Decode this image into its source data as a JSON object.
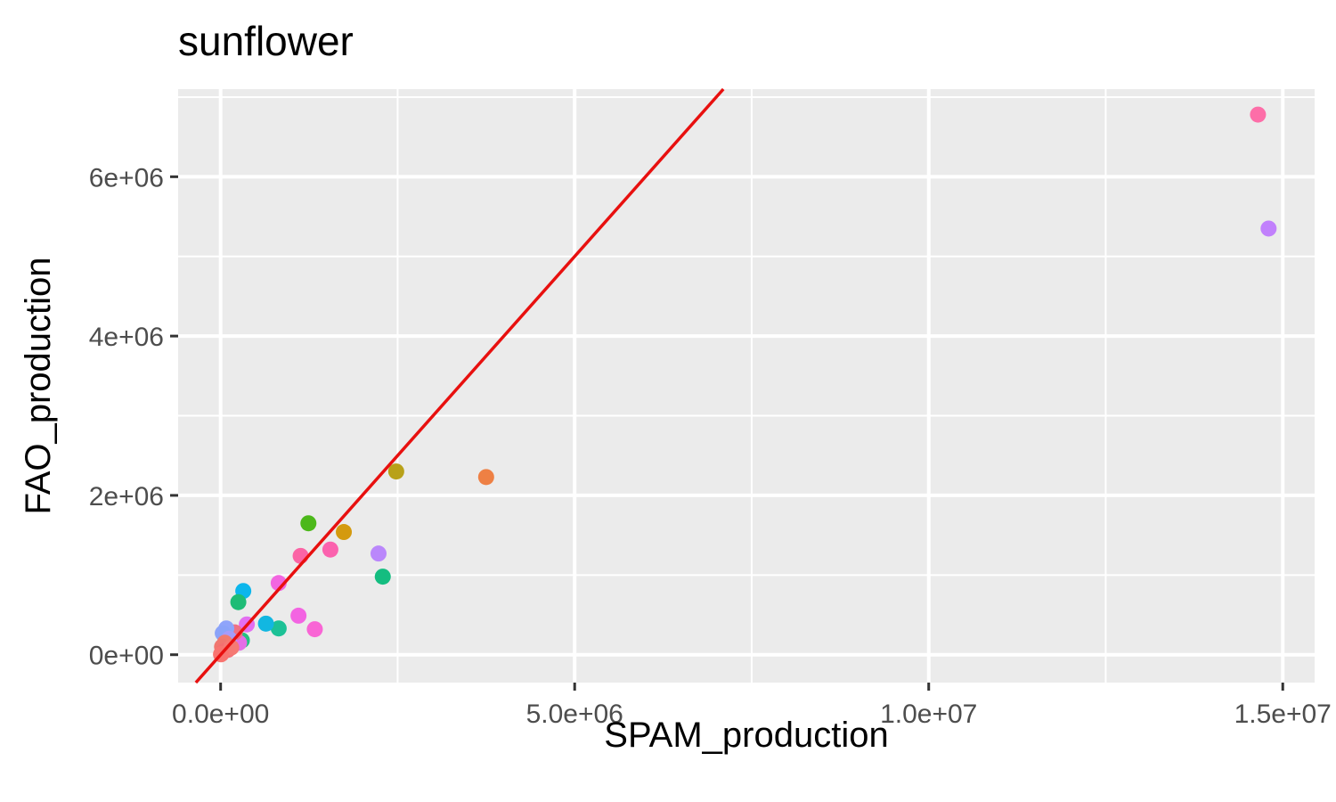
{
  "chart_data": {
    "type": "scatter",
    "title": "sunflower",
    "xlabel": "SPAM_production",
    "ylabel": "FAO_production",
    "xlim": [
      -600000,
      15450000
    ],
    "ylim": [
      -350000,
      7100000
    ],
    "x_ticks": [
      {
        "value": 0,
        "label": "0.0e+00"
      },
      {
        "value": 5000000,
        "label": "5.0e+06"
      },
      {
        "value": 10000000,
        "label": "1.0e+07"
      },
      {
        "value": 15000000,
        "label": "1.5e+07"
      }
    ],
    "y_ticks": [
      {
        "value": 0,
        "label": "0e+00"
      },
      {
        "value": 2000000,
        "label": "2e+06"
      },
      {
        "value": 4000000,
        "label": "4e+06"
      },
      {
        "value": 6000000,
        "label": "6e+06"
      }
    ],
    "grid": true,
    "background": "#ebebeb",
    "reference_line": {
      "slope": 1,
      "intercept": 0,
      "color": "#e8100f"
    },
    "points": [
      {
        "x": 14650000,
        "y": 6780000,
        "color": "#fd6ea8"
      },
      {
        "x": 14800000,
        "y": 5350000,
        "color": "#c180fc"
      },
      {
        "x": 3750000,
        "y": 2230000,
        "color": "#ee8044"
      },
      {
        "x": 2480000,
        "y": 2300000,
        "color": "#b8a119"
      },
      {
        "x": 1740000,
        "y": 1540000,
        "color": "#d49a0f"
      },
      {
        "x": 1240000,
        "y": 1650000,
        "color": "#4cb81a"
      },
      {
        "x": 2230000,
        "y": 1270000,
        "color": "#ba87fb"
      },
      {
        "x": 2290000,
        "y": 980000,
        "color": "#14bd80"
      },
      {
        "x": 1550000,
        "y": 1320000,
        "color": "#fb62ae"
      },
      {
        "x": 1130000,
        "y": 1240000,
        "color": "#fb64a5"
      },
      {
        "x": 820000,
        "y": 900000,
        "color": "#f266e0"
      },
      {
        "x": 1100000,
        "y": 490000,
        "color": "#f364e2"
      },
      {
        "x": 1330000,
        "y": 320000,
        "color": "#f965d5"
      },
      {
        "x": 820000,
        "y": 330000,
        "color": "#1cc196"
      },
      {
        "x": 640000,
        "y": 390000,
        "color": "#12b7e1"
      },
      {
        "x": 320000,
        "y": 800000,
        "color": "#0cb6ec"
      },
      {
        "x": 250000,
        "y": 660000,
        "color": "#1ebc76"
      },
      {
        "x": 370000,
        "y": 380000,
        "color": "#e36ff1"
      },
      {
        "x": 300000,
        "y": 180000,
        "color": "#24c182"
      },
      {
        "x": 260000,
        "y": 150000,
        "color": "#e46de6"
      },
      {
        "x": 200000,
        "y": 280000,
        "color": "#ef7184"
      },
      {
        "x": 80000,
        "y": 330000,
        "color": "#8fa4fb"
      },
      {
        "x": 30000,
        "y": 270000,
        "color": "#8aa3f9"
      },
      {
        "x": 120000,
        "y": 200000,
        "color": "#a59cfa"
      },
      {
        "x": 60000,
        "y": 150000,
        "color": "#f07b6e"
      },
      {
        "x": 20000,
        "y": 100000,
        "color": "#f0776f"
      },
      {
        "x": 100000,
        "y": 60000,
        "color": "#f76f7a"
      },
      {
        "x": 40000,
        "y": 40000,
        "color": "#f36f70"
      },
      {
        "x": 10000,
        "y": 10000,
        "color": "#f4756d"
      },
      {
        "x": 150000,
        "y": 90000,
        "color": "#f57a74"
      },
      {
        "x": 5000,
        "y": 5000,
        "color": "#f87470"
      }
    ]
  }
}
